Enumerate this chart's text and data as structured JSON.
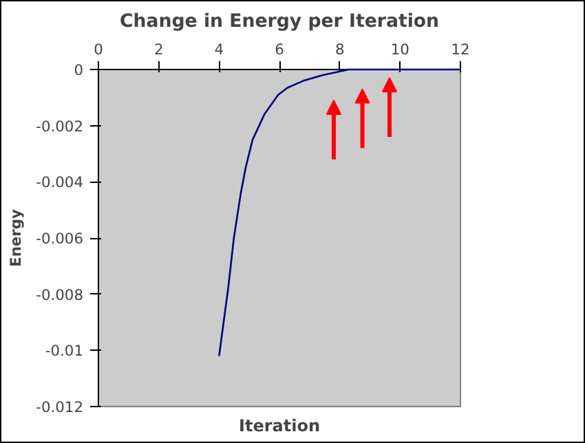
{
  "chart_data": {
    "type": "line",
    "title": "Change in Energy per Iteration",
    "xlabel": "Iteration",
    "ylabel": "Energy",
    "x": [
      4.0,
      4.3,
      4.49,
      4.72,
      4.88,
      5.11,
      5.5,
      5.96,
      6.27,
      6.8,
      7.43,
      8.3,
      9,
      10,
      11,
      12
    ],
    "series": [
      {
        "color": "#000080",
        "values": [
          -0.0102,
          -0.0078,
          -0.006,
          -0.0044,
          -0.0035,
          -0.0025,
          -0.0016,
          -0.0009,
          -0.00065,
          -0.0004,
          -0.0002,
          0,
          0,
          0,
          0,
          0
        ]
      }
    ],
    "xlim": [
      0,
      12
    ],
    "xticks": [
      0,
      2,
      4,
      6,
      8,
      10,
      12
    ],
    "ylim": [
      -0.012,
      0
    ],
    "yticks": [
      0,
      -0.002,
      -0.004,
      -0.006,
      -0.008,
      -0.01,
      -0.012
    ],
    "grid": false,
    "marker": "none",
    "line_style": "solid"
  }
}
